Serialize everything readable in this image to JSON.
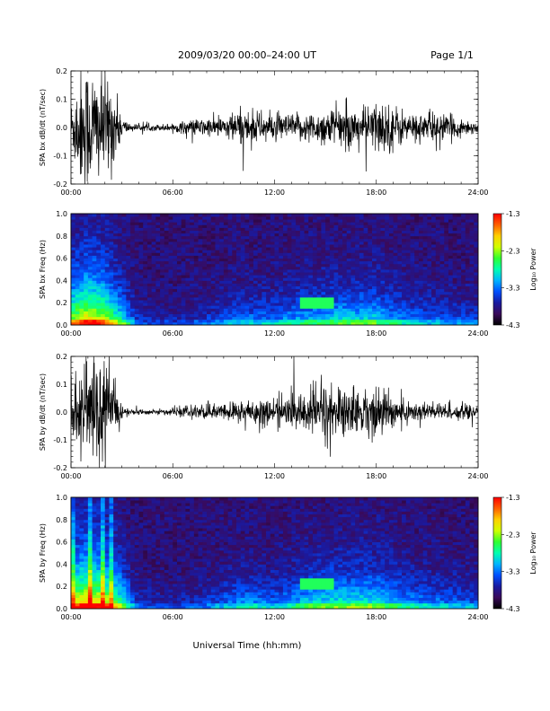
{
  "header": {
    "date_title": "2009/03/20  00:00–24:00 UT",
    "page_label": "Page 1/1"
  },
  "x_axis_title": "Universal Time (hh:mm)",
  "x_tick_labels": [
    "00:00",
    "06:00",
    "12:00",
    "18:00",
    "24:00"
  ],
  "colorbar": {
    "label": "Log₁₀ Power",
    "tick_labels": [
      "-1.3",
      "-2.3",
      "-3.3",
      "-4.3"
    ],
    "range": [
      -4.3,
      -1.3
    ],
    "colormap": [
      "#000000",
      "#3a0a5a",
      "#1a1aa0",
      "#0050ff",
      "#00b4ff",
      "#00ffb0",
      "#30ff30",
      "#d0ff00",
      "#ffd000",
      "#ff6000",
      "#ff0000"
    ]
  },
  "chart_data": [
    {
      "type": "line",
      "ylabel": "SPA bx dB/dt (nT/sec)",
      "xlim": [
        0,
        24
      ],
      "ylim": [
        -0.2,
        0.2
      ],
      "y_tick_labels": [
        "0.2",
        "0.1",
        "0.0",
        "-0.1",
        "-0.2"
      ],
      "y_ticks": [
        0.2,
        0.1,
        0.0,
        -0.1,
        -0.2
      ],
      "amplitude_envelope": {
        "hours": [
          0,
          0.5,
          1,
          1.5,
          2,
          2.5,
          3,
          3.5,
          4,
          5,
          6,
          7,
          8,
          9,
          10,
          11,
          12,
          13,
          14,
          15,
          16,
          17,
          18,
          19,
          20,
          21,
          22,
          23,
          24
        ],
        "amplitude": [
          0.1,
          0.22,
          0.25,
          0.22,
          0.2,
          0.16,
          0.04,
          0.015,
          0.012,
          0.012,
          0.015,
          0.03,
          0.035,
          0.04,
          0.07,
          0.06,
          0.05,
          0.05,
          0.055,
          0.07,
          0.08,
          0.07,
          0.1,
          0.09,
          0.05,
          0.06,
          0.05,
          0.035,
          0.02
        ]
      },
      "color": "#000000"
    },
    {
      "type": "heatmap",
      "ylabel": "SPA bx Freq (Hz)",
      "xlim": [
        0,
        24
      ],
      "ylim": [
        0.0,
        1.0
      ],
      "y_tick_labels": [
        "1.0",
        "0.8",
        "0.6",
        "0.4",
        "0.2",
        "0.0"
      ],
      "y_ticks": [
        1.0,
        0.8,
        0.6,
        0.4,
        0.2,
        0.0
      ],
      "activity": {
        "hours": [
          0,
          1,
          2,
          3,
          4,
          6,
          8,
          10,
          12,
          14,
          16,
          18,
          20,
          22,
          24
        ],
        "level": [
          0.7,
          0.85,
          0.75,
          0.5,
          0.15,
          0.12,
          0.18,
          0.3,
          0.3,
          0.4,
          0.45,
          0.45,
          0.3,
          0.25,
          0.2
        ]
      },
      "banded_feature": {
        "hour_range": [
          13.5,
          15.5
        ],
        "freq_hz": 0.19,
        "log_power": -2.6
      }
    },
    {
      "type": "line",
      "ylabel": "SPA by dB/dt (nT/sec)",
      "xlim": [
        0,
        24
      ],
      "ylim": [
        -0.2,
        0.2
      ],
      "y_tick_labels": [
        "0.2",
        "0.1",
        "0.0",
        "-0.1",
        "-0.2"
      ],
      "y_ticks": [
        0.2,
        0.1,
        0.0,
        -0.1,
        -0.2
      ],
      "amplitude_envelope": {
        "hours": [
          0,
          0.5,
          1,
          1.5,
          2,
          2.5,
          3,
          3.5,
          4,
          5,
          6,
          7,
          8,
          9,
          10,
          11,
          12,
          13,
          14,
          15,
          16,
          17,
          18,
          19,
          20,
          21,
          22,
          23,
          24
        ],
        "amplitude": [
          0.08,
          0.18,
          0.22,
          0.2,
          0.18,
          0.14,
          0.03,
          0.012,
          0.01,
          0.01,
          0.012,
          0.025,
          0.03,
          0.03,
          0.05,
          0.055,
          0.05,
          0.06,
          0.09,
          0.12,
          0.1,
          0.08,
          0.1,
          0.07,
          0.04,
          0.04,
          0.035,
          0.03,
          0.02
        ]
      },
      "color": "#000000"
    },
    {
      "type": "heatmap",
      "ylabel": "SPA by Freq (Hz)",
      "xlim": [
        0,
        24
      ],
      "ylim": [
        0.0,
        1.0
      ],
      "y_tick_labels": [
        "1.0",
        "0.8",
        "0.6",
        "0.4",
        "0.2",
        "0.0"
      ],
      "y_ticks": [
        1.0,
        0.8,
        0.6,
        0.4,
        0.2,
        0.0
      ],
      "activity": {
        "hours": [
          0,
          1,
          2,
          3,
          4,
          6,
          8,
          10,
          12,
          14,
          16,
          18,
          20,
          22,
          24
        ],
        "level": [
          0.75,
          0.9,
          0.8,
          0.55,
          0.15,
          0.12,
          0.2,
          0.35,
          0.3,
          0.45,
          0.5,
          0.5,
          0.35,
          0.3,
          0.25
        ]
      },
      "banded_feature": {
        "hour_range": [
          13.5,
          15.5
        ],
        "freq_hz": 0.22,
        "log_power": -2.6
      }
    }
  ]
}
